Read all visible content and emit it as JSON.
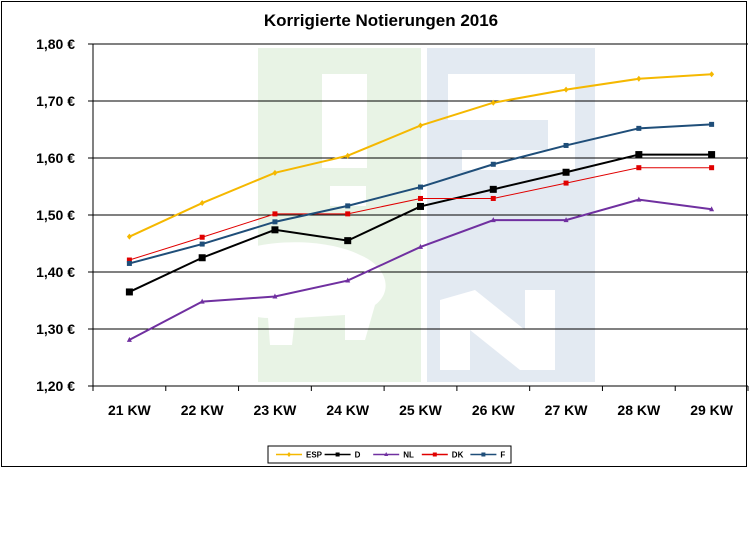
{
  "chart_data": {
    "type": "line",
    "title": "Korrigierte Notierungen 2016",
    "xlabel": "",
    "ylabel": "",
    "categories": [
      "21 KW",
      "22 KW",
      "23 KW",
      "24 KW",
      "25 KW",
      "26 KW",
      "27 KW",
      "28 KW",
      "29 KW"
    ],
    "ylim": [
      1.2,
      1.8
    ],
    "y_ticks": [
      1.2,
      1.3,
      1.4,
      1.5,
      1.6,
      1.7,
      1.8
    ],
    "y_tick_labels": [
      "1,20 €",
      "1,30 €",
      "1,40 €",
      "1,50 €",
      "1,60 €",
      "1,70 €",
      "1,80 €"
    ],
    "grid": true,
    "legend_position": "bottom",
    "watermark": "ISN",
    "series": [
      {
        "name": "ESP",
        "color": "#F5B800",
        "marker": "diamond",
        "values": [
          1.462,
          1.521,
          1.574,
          1.604,
          1.657,
          1.697,
          1.72,
          1.739,
          1.747
        ]
      },
      {
        "name": "D",
        "color": "#000000",
        "marker": "square",
        "values": [
          1.365,
          1.425,
          1.474,
          1.455,
          1.515,
          1.545,
          1.575,
          1.606,
          1.606
        ]
      },
      {
        "name": "NL",
        "color": "#7030A0",
        "marker": "triangle",
        "values": [
          1.281,
          1.348,
          1.357,
          1.385,
          1.444,
          1.491,
          1.491,
          1.527,
          1.51
        ]
      },
      {
        "name": "DK",
        "color": "#E00000",
        "marker": "square",
        "values": [
          1.421,
          1.461,
          1.502,
          1.502,
          1.529,
          1.529,
          1.556,
          1.583,
          1.583
        ]
      },
      {
        "name": "F",
        "color": "#1F4E79",
        "marker": "square",
        "values": [
          1.415,
          1.449,
          1.488,
          1.516,
          1.549,
          1.589,
          1.622,
          1.652,
          1.659
        ]
      }
    ]
  }
}
